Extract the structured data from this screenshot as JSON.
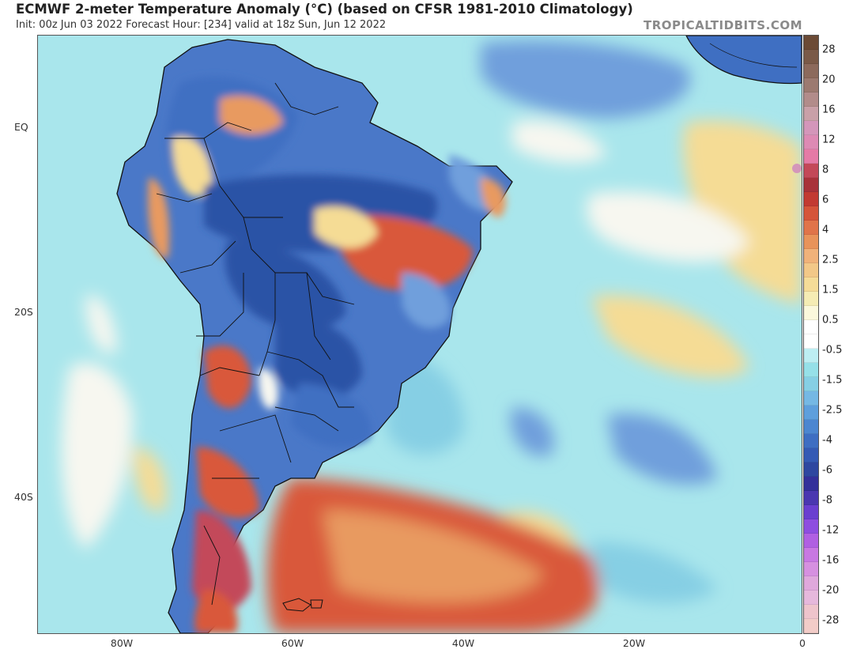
{
  "header": {
    "title": "ECMWF 2-meter Temperature Anomaly (°C) (based on CFSR 1981-2010 Climatology)",
    "subtitle": "Init: 00z Jun 03 2022   Forecast Hour: [234]   valid at 18z Sun, Jun 12 2022",
    "brand": "TROPICALTIDBITS.COM"
  },
  "map": {
    "lat_labels": [
      "EQ",
      "20S",
      "40S"
    ],
    "lon_labels": [
      "80W",
      "60W",
      "40W",
      "20W",
      "0"
    ],
    "colors": {
      "ocean_base": "#a9e6ec",
      "cold_deep": "#2c52a6",
      "cold_mid": "#3f6fc2",
      "cold_light": "#6f9fdc",
      "neutral": "#f7f7f0",
      "warm_light": "#f5dc95",
      "warm_mid": "#e89a60",
      "warm_strong": "#d9583a",
      "coast": "#111111"
    }
  },
  "colorbar": {
    "labels": [
      "28",
      "20",
      "16",
      "12",
      "8",
      "6",
      "4",
      "2.5",
      "1.5",
      "0.5",
      "-0.5",
      "-1.5",
      "-2.5",
      "-4",
      "-6",
      "-8",
      "-12",
      "-16",
      "-20",
      "-28"
    ],
    "colors": [
      "#6b4a35",
      "#7a5a48",
      "#8c6a5c",
      "#9c7a70",
      "#b28c8a",
      "#c9a0a8",
      "#d496ba",
      "#dd8ab4",
      "#e57aa6",
      "#c34858",
      "#a8323a",
      "#c23a32",
      "#d5553a",
      "#e0744a",
      "#e8935a",
      "#f0b27a",
      "#f2c888",
      "#f5dc98",
      "#f5ecb4",
      "#fbf8dc",
      "#ffffff",
      "#ffffff",
      "#bdeef2",
      "#96e0e8",
      "#86cfe4",
      "#75b8e4",
      "#5e9fdc",
      "#4c86d0",
      "#3e6ec2",
      "#355ab4",
      "#2e47a0",
      "#34309a",
      "#4a37b0",
      "#6a3fd0",
      "#8e4ee0",
      "#b060e2",
      "#c878e2",
      "#d690e0",
      "#dfa8dc",
      "#e6b8dc",
      "#eec4cc",
      "#f2ccc8"
    ]
  }
}
